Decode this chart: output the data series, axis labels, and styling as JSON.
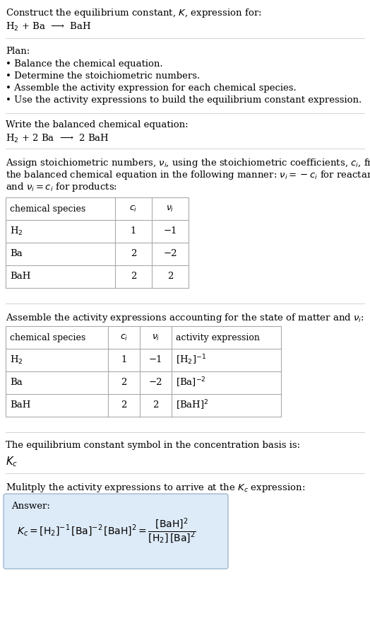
{
  "title_line1": "Construct the equilibrium constant, $K$, expression for:",
  "title_line2": "H$_2$ + Ba  ⟶  BaH",
  "plan_header": "Plan:",
  "plan_items": [
    "• Balance the chemical equation.",
    "• Determine the stoichiometric numbers.",
    "• Assemble the activity expression for each chemical species.",
    "• Use the activity expressions to build the equilibrium constant expression."
  ],
  "balanced_header": "Write the balanced chemical equation:",
  "balanced_eq": "H$_2$ + 2 Ba  ⟶  2 BaH",
  "stoich_intro_lines": [
    "Assign stoichiometric numbers, $\\nu_i$, using the stoichiometric coefficients, $c_i$, from",
    "the balanced chemical equation in the following manner: $\\nu_i = -c_i$ for reactants",
    "and $\\nu_i = c_i$ for products:"
  ],
  "table1_headers": [
    "chemical species",
    "$c_i$",
    "$\\nu_i$"
  ],
  "table1_rows": [
    [
      "H$_2$",
      "1",
      "−1"
    ],
    [
      "Ba",
      "2",
      "−2"
    ],
    [
      "BaH",
      "2",
      "2"
    ]
  ],
  "activity_intro": "Assemble the activity expressions accounting for the state of matter and $\\nu_i$:",
  "table2_headers": [
    "chemical species",
    "$c_i$",
    "$\\nu_i$",
    "activity expression"
  ],
  "table2_rows": [
    [
      "H$_2$",
      "1",
      "−1",
      "[H$_2$]$^{-1}$"
    ],
    [
      "Ba",
      "2",
      "−2",
      "[Ba]$^{-2}$"
    ],
    [
      "BaH",
      "2",
      "2",
      "[BaH]$^{2}$"
    ]
  ],
  "kc_text1": "The equilibrium constant symbol in the concentration basis is:",
  "kc_symbol": "$K_c$",
  "multiply_text": "Mulitply the activity expressions to arrive at the $K_c$ expression:",
  "answer_label": "Answer:",
  "answer_line1": "$K_c = [\\mathrm{H_2}]^{-1}\\,[\\mathrm{Ba}]^{-2}\\,[\\mathrm{BaH}]^{2} = \\dfrac{[\\mathrm{BaH}]^{2}}{[\\mathrm{H_2}]\\,[\\mathrm{Ba}]^{2}}$",
  "bg_color": "#ffffff",
  "answer_box_color": "#ddeaf7",
  "answer_box_edge": "#a0b8d0",
  "text_color": "#000000",
  "table_line_color": "#aaaaaa",
  "font_size": 9.5,
  "fig_width": 5.24,
  "fig_height": 8.99
}
